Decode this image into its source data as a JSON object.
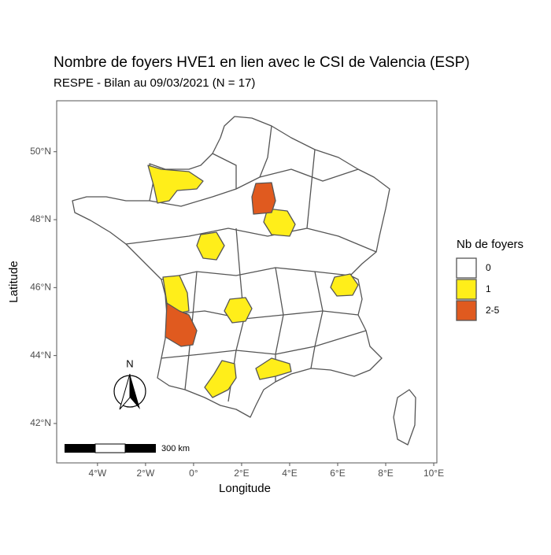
{
  "chart_data": {
    "type": "map",
    "title": "Nombre de foyers HVE1 en lien avec le CSI de Valencia (ESP)",
    "subtitle": "RESPE - Bilan au 09/03/2021 (N = 17)",
    "x_label": "Longitude",
    "y_label": "Latitude",
    "xlim": [
      -5.7,
      10.13
    ],
    "ylim": [
      40.84,
      51.5
    ],
    "xticks": [
      {
        "value": -4,
        "label": "4°W"
      },
      {
        "value": -2,
        "label": "2°W"
      },
      {
        "value": 0,
        "label": "0°"
      },
      {
        "value": 2,
        "label": "2°E"
      },
      {
        "value": 4,
        "label": "4°E"
      },
      {
        "value": 6,
        "label": "6°E"
      },
      {
        "value": 8,
        "label": "8°E"
      },
      {
        "value": 10,
        "label": "10°E"
      }
    ],
    "yticks": [
      {
        "value": 42,
        "label": "42°N"
      },
      {
        "value": 44,
        "label": "44°N"
      },
      {
        "value": 46,
        "label": "46°N"
      },
      {
        "value": 48,
        "label": "48°N"
      },
      {
        "value": 50,
        "label": "50°N"
      }
    ],
    "grid": false,
    "legend": {
      "title": "Nb de foyers",
      "entries": [
        {
          "label": "0",
          "color": "#ffffff"
        },
        {
          "label": "1",
          "color": "#ffee1a"
        },
        {
          "label": "2-5",
          "color": "#e05a1f"
        }
      ]
    },
    "north_label": "N",
    "scale_bar_label": "300 km"
  }
}
